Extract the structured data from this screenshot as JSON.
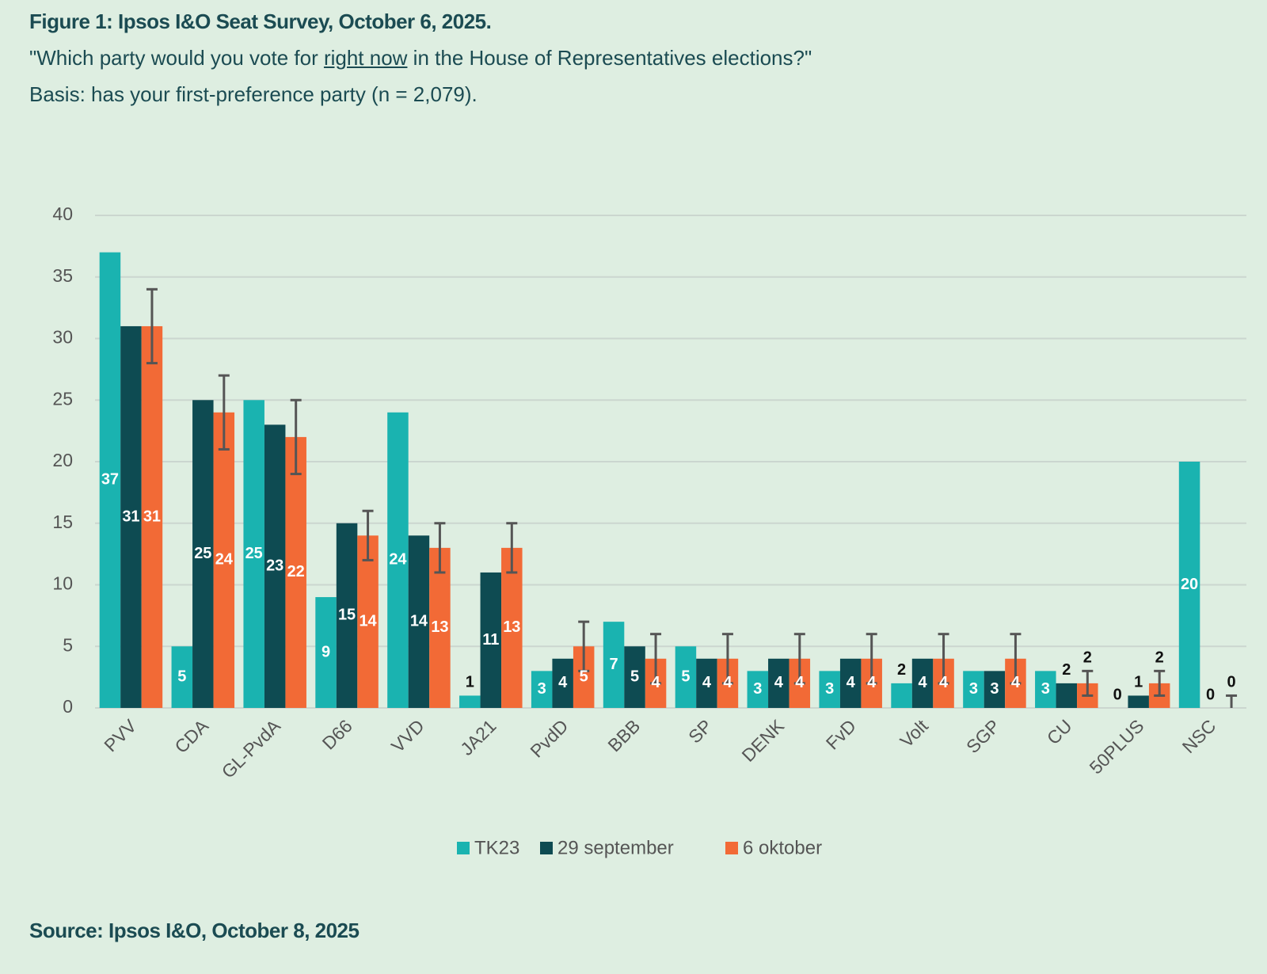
{
  "header": {
    "title": "Figure 1: Ipsos I&O Seat Survey, October 6, 2025.",
    "subtitle": [
      "\"Which party would you vote for ",
      "right now",
      " in the House of Representatives elections?\""
    ],
    "basis": "Basis: has your first-preference party (n = 2,079)."
  },
  "chart_data": {
    "type": "bar",
    "categories": [
      "PVV",
      "CDA",
      "GL-PvdA",
      "D66",
      "VVD",
      "JA21",
      "PvdD",
      "BBB",
      "SP",
      "DENK",
      "FvD",
      "Volt",
      "SGP",
      "CU",
      "50PLUS",
      "NSC"
    ],
    "series": [
      {
        "name": "TK23",
        "color": "#1ab3b0",
        "values": [
          37,
          5,
          25,
          9,
          24,
          1,
          3,
          7,
          5,
          3,
          3,
          2,
          3,
          3,
          0,
          20
        ]
      },
      {
        "name": "29 september",
        "color": "#0e4b52",
        "values": [
          31,
          25,
          23,
          15,
          14,
          11,
          4,
          5,
          4,
          4,
          4,
          4,
          3,
          2,
          1,
          0
        ]
      },
      {
        "name": "6 oktober",
        "color": "#f26a36",
        "values": [
          31,
          24,
          22,
          14,
          13,
          13,
          5,
          4,
          4,
          4,
          4,
          4,
          4,
          2,
          2,
          0
        ],
        "errors": [
          3,
          3,
          3,
          2,
          2,
          2,
          2,
          2,
          2,
          2,
          2,
          2,
          2,
          1,
          1,
          1
        ]
      }
    ],
    "ylim": [
      0,
      40
    ],
    "yticks": [
      0,
      5,
      10,
      15,
      20,
      25,
      30,
      35,
      40
    ],
    "grid": true,
    "legend": "bottom"
  },
  "source": "Source: Ipsos I&O, October 8, 2025"
}
